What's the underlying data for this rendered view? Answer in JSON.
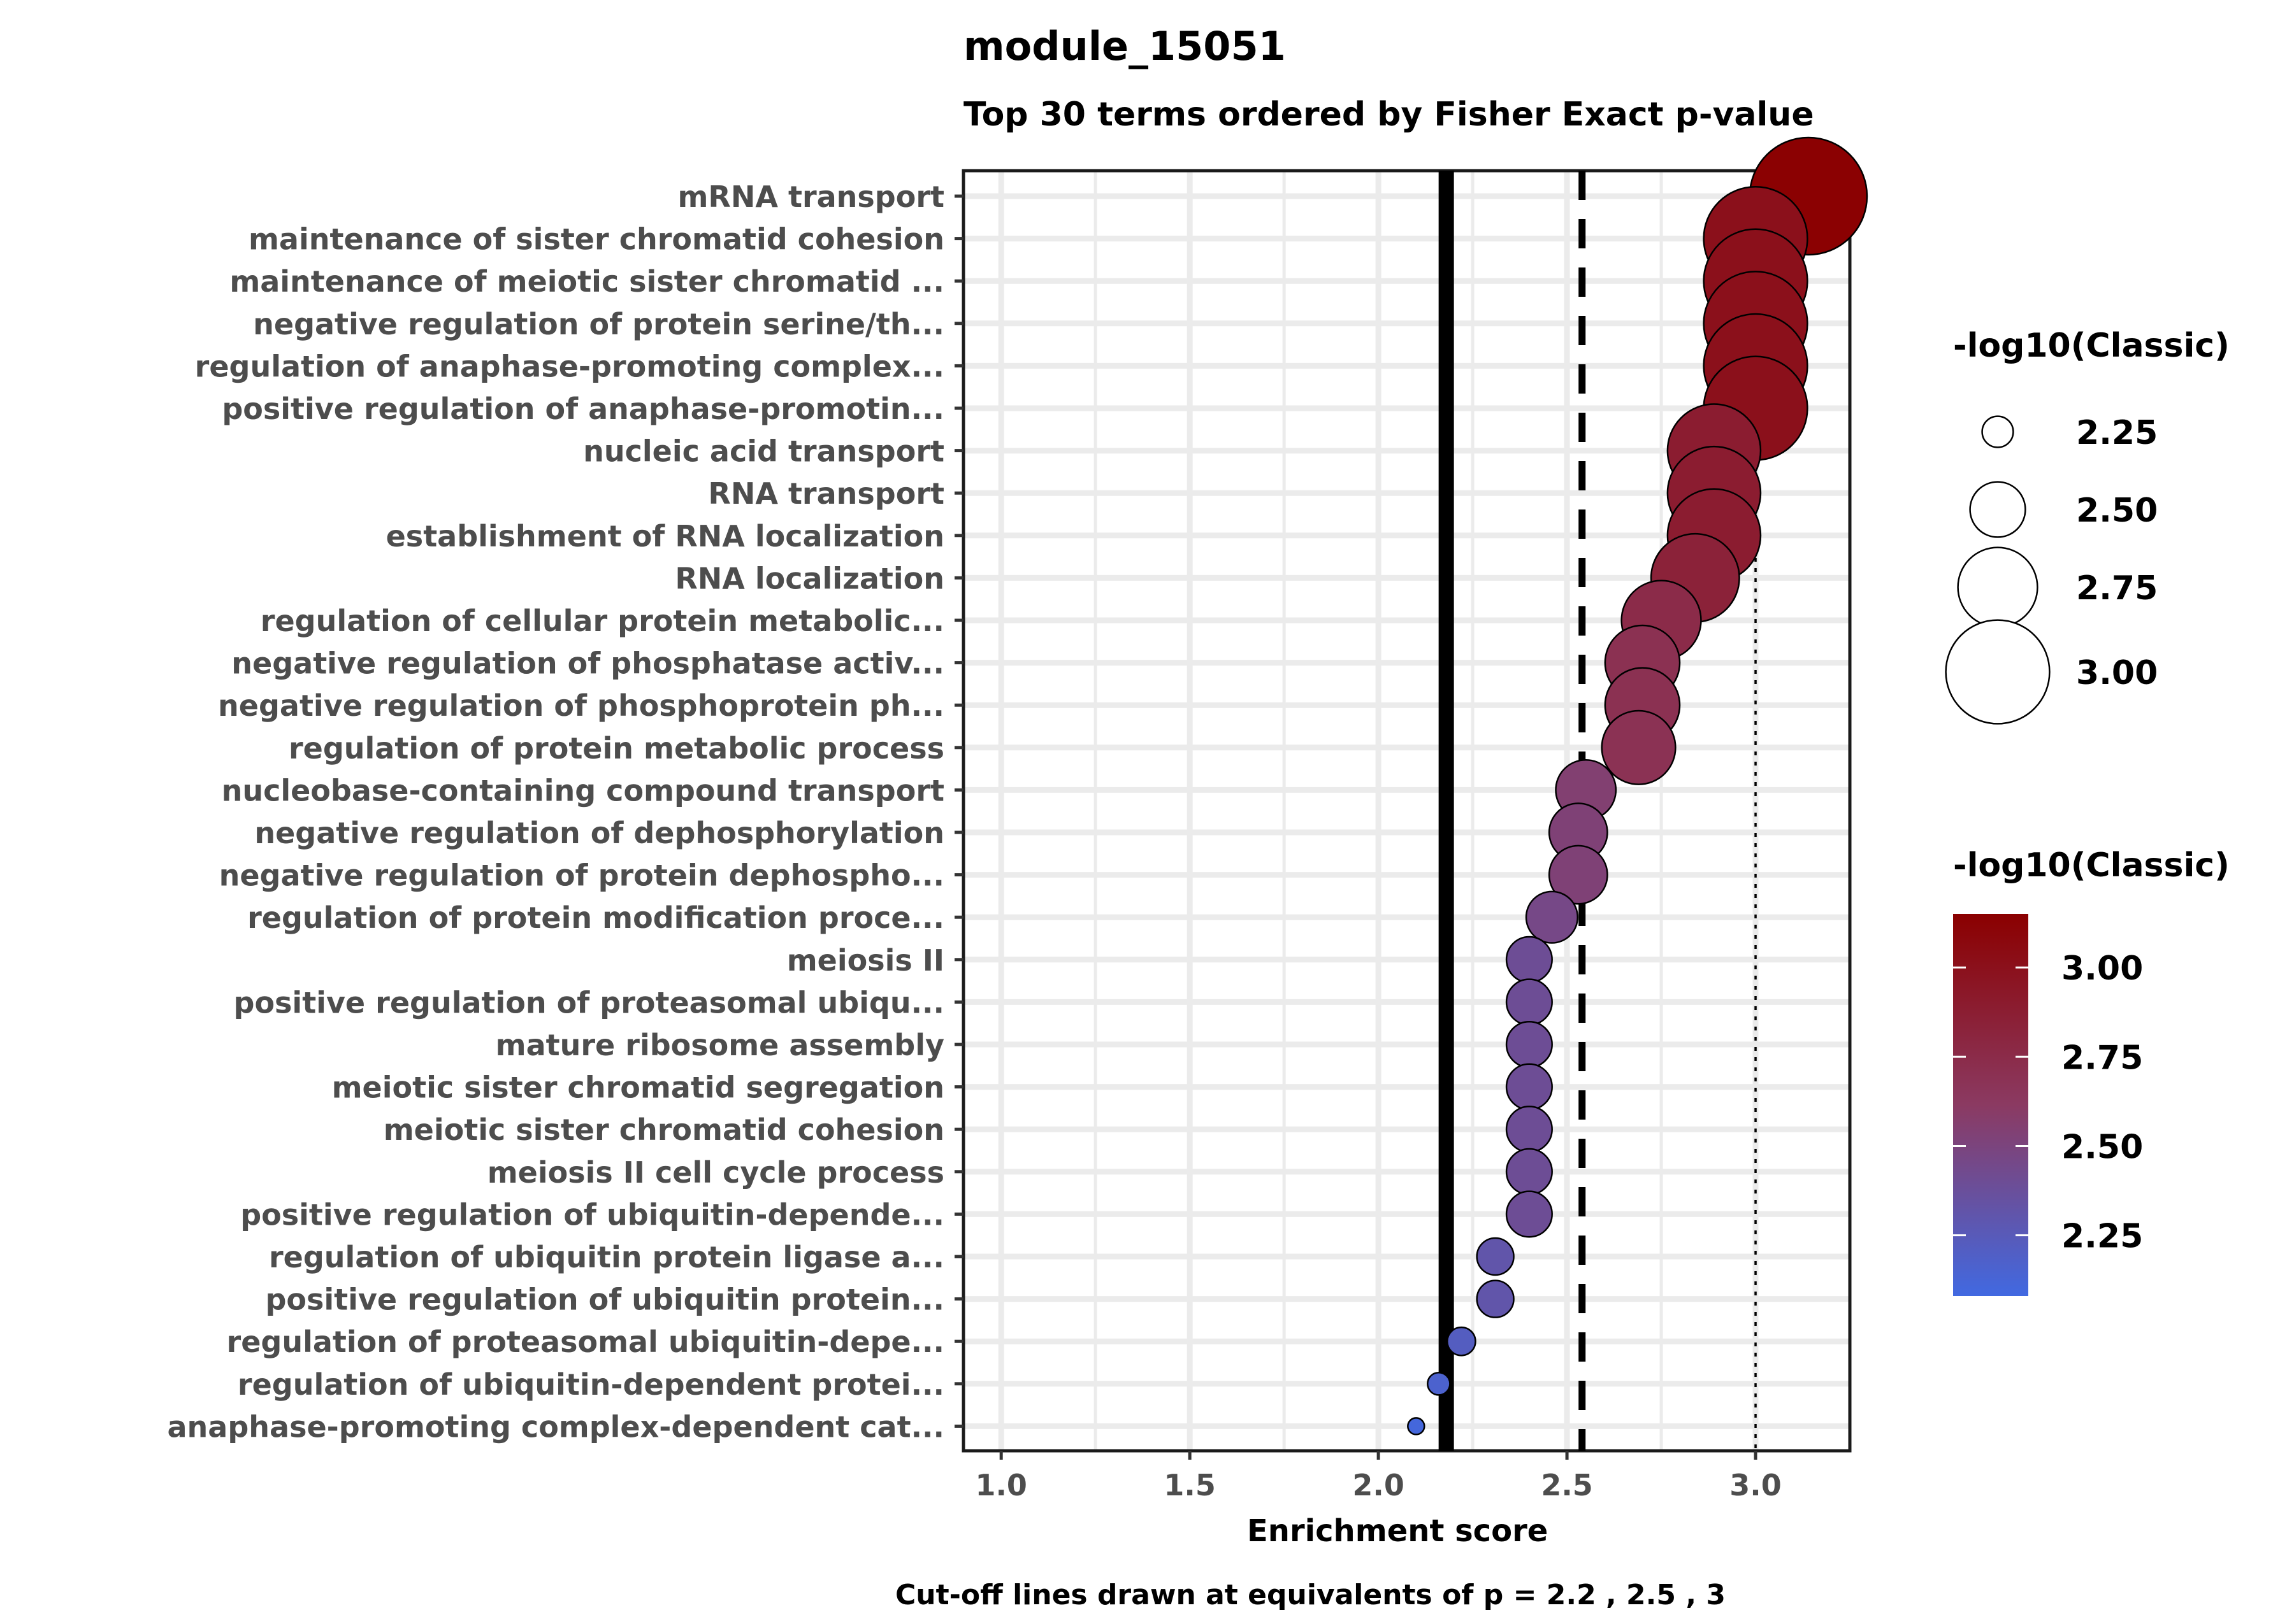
{
  "chart_data": {
    "type": "scatter",
    "title": "module_15051",
    "subtitle": "Top 30 terms ordered by Fisher Exact p-value",
    "xlabel": "Enrichment score",
    "ylabel": "",
    "caption": "Cut-off lines drawn at equivalents of p = 2.2 , 2.5 , 3",
    "xlim": [
      0.9,
      3.25
    ],
    "x_ticks": [
      "1.0",
      "1.5",
      "2.0",
      "2.5",
      "3.0"
    ],
    "grid": true,
    "cutoff_lines": [
      {
        "x": 2.18,
        "style": "solid"
      },
      {
        "x": 2.54,
        "style": "dashed"
      },
      {
        "x": 3.0,
        "style": "dotted"
      }
    ],
    "terms": [
      "mRNA transport",
      "maintenance of sister chromatid cohesion",
      "maintenance of meiotic sister chromatid ...",
      "negative regulation of protein serine/th...",
      "regulation of anaphase-promoting complex...",
      "positive regulation of anaphase-promotin...",
      "nucleic acid transport",
      "RNA transport",
      "establishment of RNA localization",
      "RNA localization",
      "regulation of cellular protein metabolic...",
      "negative regulation of phosphatase activ...",
      "negative regulation of phosphoprotein ph...",
      "regulation of protein metabolic process",
      "nucleobase-containing compound transport",
      "negative regulation of dephosphorylation",
      "negative regulation of protein dephospho...",
      "regulation of protein modification proce...",
      "meiosis II",
      "positive regulation of proteasomal ubiqu...",
      "mature ribosome assembly",
      "meiotic sister chromatid segregation",
      "meiotic sister chromatid cohesion",
      "meiosis II cell cycle process",
      "positive regulation of ubiquitin-depende...",
      "regulation of ubiquitin protein ligase a...",
      "positive regulation of ubiquitin protein...",
      "regulation of proteasomal ubiquitin-depe...",
      "regulation of ubiquitin-dependent protei...",
      "anaphase-promoting complex-dependent cat..."
    ],
    "x": [
      3.14,
      3.0,
      3.0,
      3.0,
      3.0,
      3.0,
      2.89,
      2.89,
      2.89,
      2.84,
      2.75,
      2.7,
      2.7,
      2.69,
      2.55,
      2.53,
      2.53,
      2.46,
      2.4,
      2.4,
      2.4,
      2.4,
      2.4,
      2.4,
      2.4,
      2.31,
      2.31,
      2.22,
      2.16,
      2.1
    ],
    "neg_log10_classic": [
      3.14,
      3.0,
      3.0,
      3.0,
      3.0,
      3.0,
      2.89,
      2.89,
      2.89,
      2.84,
      2.75,
      2.7,
      2.7,
      2.69,
      2.55,
      2.53,
      2.53,
      2.46,
      2.4,
      2.4,
      2.4,
      2.4,
      2.4,
      2.4,
      2.4,
      2.31,
      2.31,
      2.22,
      2.16,
      2.1
    ],
    "size_legend": {
      "title": "-log10(Classic)",
      "values": [
        2.25,
        2.5,
        2.75,
        3.0
      ],
      "labels": [
        "2.25",
        "2.50",
        "2.75",
        "3.00"
      ]
    },
    "color_legend": {
      "title": "-log10(Classic)",
      "range": [
        2.08,
        3.15
      ],
      "values": [
        2.25,
        2.5,
        2.75,
        3.0
      ],
      "labels": [
        "2.25",
        "2.50",
        "2.75",
        "3.00"
      ],
      "low_color": "#4169E1",
      "mid_color": "#8B3A62",
      "high_color": "#8B0000"
    }
  }
}
